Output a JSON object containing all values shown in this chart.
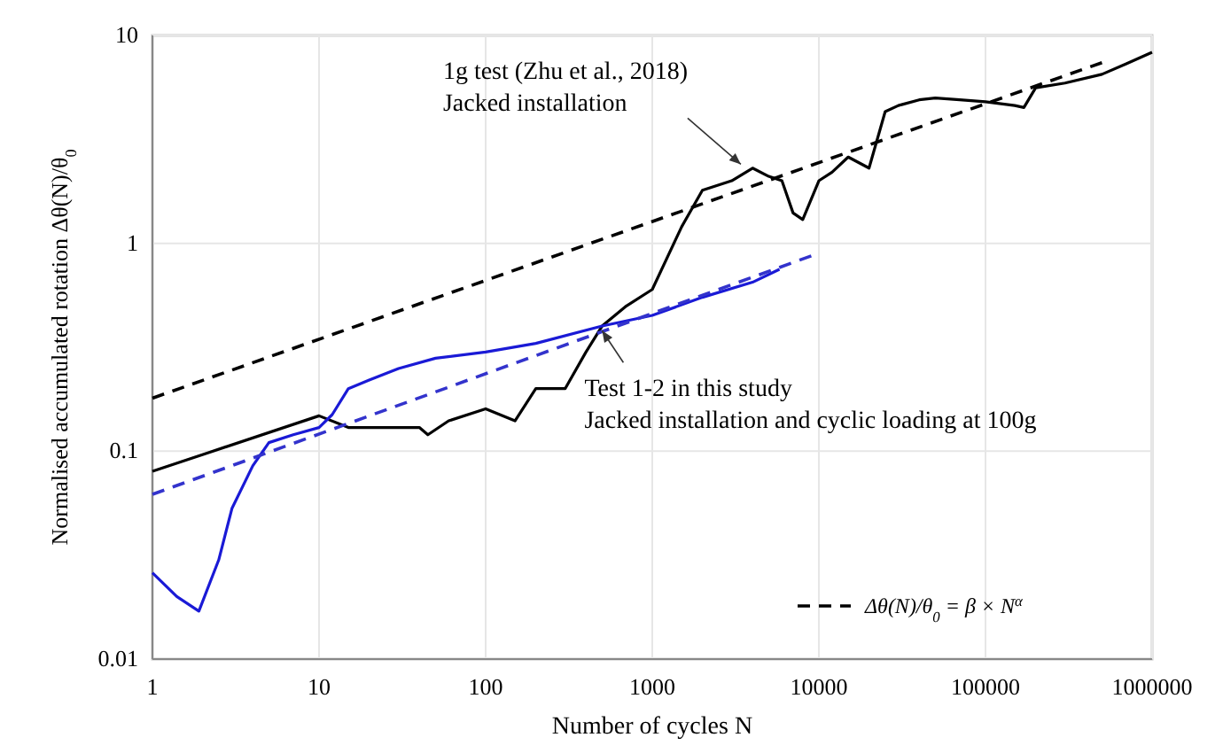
{
  "chart_data": {
    "type": "line",
    "xlabel": "Number of cycles N",
    "ylabel": "Normalised accumulated rotation Δθ(N)/θ$_{0}$",
    "log": "xy",
    "grid": true,
    "legend": "bottom right",
    "xlim": [
      1,
      1000000
    ],
    "xticks": [
      1,
      10,
      100,
      1000,
      10000,
      100000,
      1000000
    ],
    "ylim": [
      0.01,
      10
    ],
    "yticks": [
      0.01,
      0.1,
      1,
      10
    ],
    "series": [
      {
        "color": "#000000",
        "line_style": "solid",
        "x": [
          1,
          10,
          15,
          40,
          45,
          60,
          100,
          150,
          200,
          300,
          400,
          500,
          700,
          1000,
          1500,
          2000,
          3000,
          4000,
          5000,
          6000,
          7000,
          8000,
          10000,
          12000,
          15000,
          20000,
          25000,
          30000,
          40000,
          50000,
          70000,
          100000,
          150000,
          170000,
          200000,
          300000,
          500000,
          700000,
          1000000
        ],
        "values": [
          0.08,
          0.148,
          0.13,
          0.13,
          0.12,
          0.14,
          0.16,
          0.14,
          0.2,
          0.2,
          0.3,
          0.4,
          0.5,
          0.6,
          1.2,
          1.8,
          2.0,
          2.3,
          2.1,
          2.0,
          1.4,
          1.3,
          2.0,
          2.2,
          2.6,
          2.3,
          4.3,
          4.6,
          4.9,
          5.0,
          4.9,
          4.8,
          4.6,
          4.5,
          5.6,
          5.9,
          6.5,
          7.3,
          8.3
        ]
      },
      {
        "color": "#1a1ad6",
        "line_style": "solid",
        "x": [
          1,
          1.4,
          1.9,
          2.5,
          3,
          4,
          5,
          7,
          10,
          12,
          15,
          20,
          30,
          50,
          100,
          200,
          500,
          1000,
          2000,
          4000,
          5800
        ],
        "values": [
          0.026,
          0.02,
          0.017,
          0.03,
          0.053,
          0.085,
          0.11,
          0.12,
          0.13,
          0.15,
          0.2,
          0.22,
          0.25,
          0.28,
          0.3,
          0.33,
          0.4,
          0.45,
          0.55,
          0.65,
          0.75
        ]
      },
      {
        "name": "Δθ(N)/θ$_{0}$ = β × N$^{α}$",
        "color": "#000000",
        "line_style": "dashed",
        "x": [
          1,
          500000
        ],
        "values": [
          0.18,
          7.4
        ]
      },
      {
        "color": "#3333cc",
        "line_style": "dashed",
        "x": [
          1,
          9000
        ],
        "values": [
          0.062,
          0.87
        ]
      }
    ],
    "annotations": [
      {
        "text": "1g test (Zhu et al., 2018)\nJacked installation",
        "x": 3400,
        "y": 2.4
      },
      {
        "text": "Test 1-2 in this study\nJacked installation and cyclic loading at 100g",
        "x": 500,
        "y": 0.38
      }
    ]
  }
}
